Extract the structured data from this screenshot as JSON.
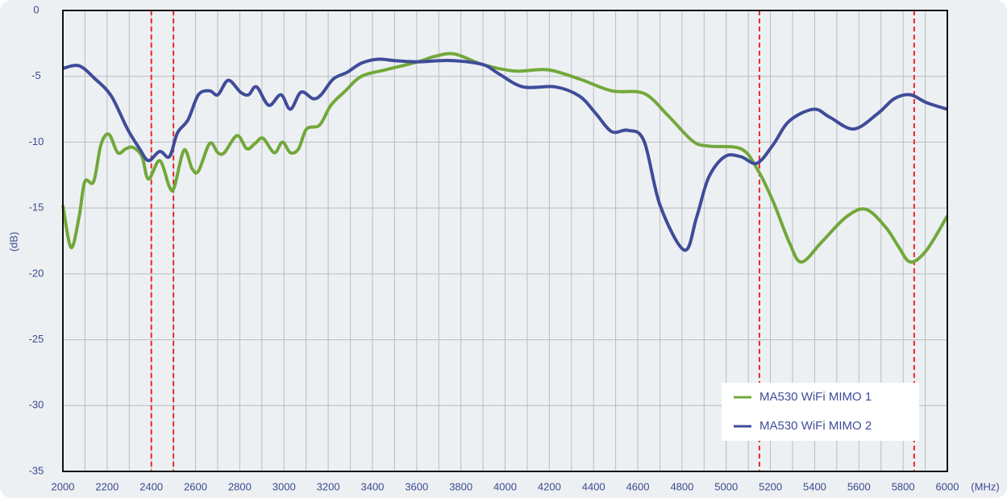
{
  "chart_data": {
    "type": "line",
    "xlabel": "(MHz)",
    "ylabel": "(dB)",
    "xlim": [
      2000,
      6000
    ],
    "ylim": [
      -35,
      0
    ],
    "xticks": [
      2000,
      2200,
      2400,
      2600,
      2800,
      3000,
      3200,
      3400,
      3600,
      3800,
      4000,
      4200,
      4400,
      4600,
      4800,
      5000,
      5200,
      5400,
      5600,
      5800,
      6000
    ],
    "xgrid": [
      2000,
      2100,
      2200,
      2300,
      2400,
      2500,
      2600,
      2700,
      2800,
      2900,
      3000,
      3100,
      3200,
      3300,
      3400,
      3500,
      3600,
      3700,
      3800,
      3900,
      4000,
      4100,
      4200,
      4300,
      4400,
      4500,
      4600,
      4700,
      4800,
      4900,
      5000,
      5100,
      5200,
      5300,
      5400,
      5500,
      5600,
      5700,
      5800,
      5900,
      6000
    ],
    "yticks": [
      0,
      -5,
      -10,
      -15,
      -20,
      -25,
      -30,
      -35
    ],
    "grid": true,
    "legend": "lower right",
    "markers": {
      "color": "#e8262a",
      "x": [
        2400,
        2500,
        5150,
        5850
      ]
    },
    "series": [
      {
        "name": "MA530 WiFi MIMO 1",
        "color": "#72a83b",
        "x": [
          2000,
          2037,
          2073,
          2099,
          2139,
          2172,
          2208,
          2248,
          2285,
          2318,
          2358,
          2387,
          2438,
          2482,
          2504,
          2548,
          2584,
          2613,
          2664,
          2701,
          2730,
          2788,
          2832,
          2869,
          2905,
          2956,
          2993,
          3029,
          3066,
          3102,
          3161,
          3212,
          3278,
          3350,
          3460,
          3606,
          3679,
          3770,
          3898,
          4044,
          4190,
          4336,
          4482,
          4628,
          4738,
          4847,
          4920,
          5066,
          5139,
          5212,
          5285,
          5340,
          5431,
          5541,
          5632,
          5723,
          5778,
          5833,
          5906,
          6000
        ],
        "values": [
          -14.8,
          -18,
          -15.7,
          -13,
          -13,
          -10.2,
          -9.4,
          -10.8,
          -10.5,
          -10.4,
          -11.1,
          -12.8,
          -11.4,
          -13.4,
          -13.4,
          -10.6,
          -12,
          -12.2,
          -10.1,
          -10.8,
          -10.8,
          -9.5,
          -10.5,
          -10.1,
          -9.7,
          -10.8,
          -10,
          -10.8,
          -10.5,
          -9,
          -8.7,
          -7.2,
          -6.1,
          -5,
          -4.5,
          -3.9,
          -3.5,
          -3.3,
          -4.1,
          -4.6,
          -4.5,
          -5.2,
          -6.1,
          -6.3,
          -8,
          -9.9,
          -10.3,
          -10.5,
          -12,
          -14.5,
          -17.6,
          -19.1,
          -17.6,
          -15.7,
          -15.1,
          -16.5,
          -17.9,
          -19.1,
          -18.2,
          -15.6
        ]
      },
      {
        "name": "MA530 WiFi MIMO 2",
        "color": "#3f4c99",
        "x": [
          2000,
          2073,
          2146,
          2219,
          2292,
          2347,
          2387,
          2438,
          2482,
          2518,
          2566,
          2613,
          2664,
          2701,
          2748,
          2803,
          2840,
          2876,
          2931,
          2986,
          3029,
          3077,
          3132,
          3168,
          3223,
          3285,
          3350,
          3424,
          3497,
          3606,
          3752,
          3898,
          3971,
          4081,
          4227,
          4336,
          4409,
          4482,
          4555,
          4628,
          4701,
          4811,
          4866,
          4920,
          4993,
          5066,
          5139,
          5212,
          5285,
          5395,
          5468,
          5577,
          5687,
          5760,
          5833,
          5906,
          6000
        ],
        "values": [
          -4.4,
          -4.2,
          -5.2,
          -6.5,
          -9,
          -10.5,
          -11.4,
          -10.7,
          -11.1,
          -9.3,
          -8.3,
          -6.4,
          -6.1,
          -6.4,
          -5.3,
          -6.2,
          -6.4,
          -5.8,
          -7.2,
          -6.4,
          -7.5,
          -6.2,
          -6.7,
          -6.4,
          -5.2,
          -4.7,
          -4,
          -3.7,
          -3.8,
          -3.9,
          -3.8,
          -4.1,
          -4.8,
          -5.8,
          -5.8,
          -6.5,
          -7.8,
          -9.2,
          -9.1,
          -9.9,
          -14.8,
          -18.2,
          -15.7,
          -12.7,
          -11.1,
          -11.1,
          -11.6,
          -10.2,
          -8.4,
          -7.5,
          -8.1,
          -9,
          -7.8,
          -6.7,
          -6.4,
          -7,
          -7.5
        ]
      }
    ]
  }
}
